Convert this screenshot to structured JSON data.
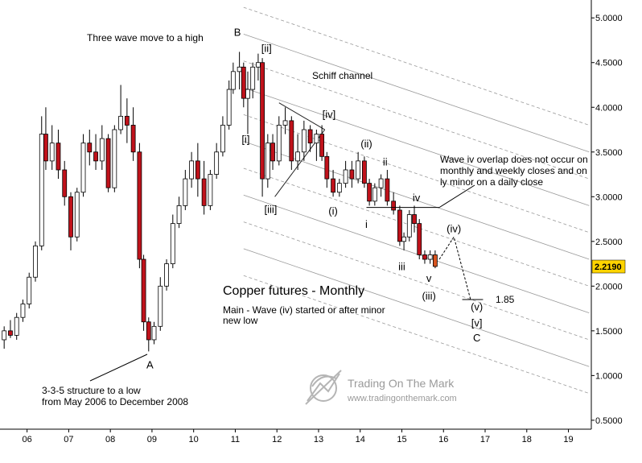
{
  "chart_data": {
    "type": "candlestick",
    "title": "Copper futures - Monthly",
    "subtitle": "Main - Wave (iv) started or after minor new low",
    "x_axis": {
      "ticks": [
        "06",
        "07",
        "08",
        "09",
        "10",
        "11",
        "12",
        "13",
        "14",
        "15",
        "16",
        "17",
        "18",
        "19"
      ],
      "range": [
        2005.35,
        2019.55
      ]
    },
    "y_axis": {
      "scale": "linear",
      "position": "right",
      "range": [
        0.4,
        5.2
      ],
      "ticks": [
        "0.5000",
        "1.0000",
        "1.5000",
        "2.0000",
        "2.5000",
        "3.0000",
        "3.5000",
        "4.0000",
        "4.5000",
        "5.0000"
      ]
    },
    "last_price": {
      "label": "2.2190",
      "value": 2.219
    },
    "target_level": {
      "label": "1.85",
      "value": 1.85
    },
    "wave_labels": [
      {
        "text": "A",
        "x": 2008.95,
        "y": 1.08
      },
      {
        "text": "B",
        "x": 2011.05,
        "y": 4.8
      },
      {
        "text": "C",
        "x": 2016.8,
        "y": 1.38
      },
      {
        "text": "[i]",
        "x": 2011.25,
        "y": 3.6
      },
      {
        "text": "[ii]",
        "x": 2011.75,
        "y": 4.62
      },
      {
        "text": "[iii]",
        "x": 2011.85,
        "y": 2.82
      },
      {
        "text": "[iv]",
        "x": 2013.25,
        "y": 3.88
      },
      {
        "text": "[v]",
        "x": 2016.8,
        "y": 1.55
      },
      {
        "text": "(i)",
        "x": 2013.35,
        "y": 2.8
      },
      {
        "text": "(ii)",
        "x": 2014.15,
        "y": 3.55
      },
      {
        "text": "(iii)",
        "x": 2015.65,
        "y": 1.85
      },
      {
        "text": "(iv)",
        "x": 2016.25,
        "y": 2.6
      },
      {
        "text": "(v)",
        "x": 2016.8,
        "y": 1.73
      },
      {
        "text": "i",
        "x": 2014.15,
        "y": 2.65
      },
      {
        "text": "ii",
        "x": 2014.6,
        "y": 3.35
      },
      {
        "text": "iii",
        "x": 2015.0,
        "y": 2.18
      },
      {
        "text": "iv",
        "x": 2015.35,
        "y": 2.95
      },
      {
        "text": "v",
        "x": 2015.65,
        "y": 2.05
      }
    ],
    "annotations": [
      {
        "text": "Three wave move to a high"
      },
      {
        "text": "Schiff channel"
      },
      {
        "text": "Wave iv overlap does not occur on monthly and weekly closes and only minor on a daily close"
      },
      {
        "text": "3-3-5 structure to a low from May 2006 to December 2008"
      }
    ],
    "projection_path": [
      {
        "x": 2015.9,
        "y": 2.3
      },
      {
        "x": 2016.25,
        "y": 2.55
      },
      {
        "x": 2016.65,
        "y": 1.85
      }
    ],
    "candles": [
      {
        "t": 2005.45,
        "o": 1.4,
        "h": 1.55,
        "l": 1.3,
        "c": 1.5
      },
      {
        "t": 2005.6,
        "o": 1.5,
        "h": 1.62,
        "l": 1.42,
        "c": 1.45
      },
      {
        "t": 2005.75,
        "o": 1.45,
        "h": 1.7,
        "l": 1.4,
        "c": 1.65
      },
      {
        "t": 2005.9,
        "o": 1.65,
        "h": 1.85,
        "l": 1.6,
        "c": 1.8
      },
      {
        "t": 2006.05,
        "o": 1.8,
        "h": 2.15,
        "l": 1.75,
        "c": 2.1
      },
      {
        "t": 2006.2,
        "o": 2.1,
        "h": 2.5,
        "l": 2.05,
        "c": 2.45
      },
      {
        "t": 2006.35,
        "o": 2.45,
        "h": 3.9,
        "l": 2.4,
        "c": 3.7
      },
      {
        "t": 2006.45,
        "o": 3.7,
        "h": 4.0,
        "l": 3.3,
        "c": 3.4
      },
      {
        "t": 2006.6,
        "o": 3.4,
        "h": 3.8,
        "l": 3.3,
        "c": 3.6
      },
      {
        "t": 2006.75,
        "o": 3.6,
        "h": 3.75,
        "l": 3.2,
        "c": 3.3
      },
      {
        "t": 2006.9,
        "o": 3.3,
        "h": 3.4,
        "l": 2.9,
        "c": 3.0
      },
      {
        "t": 2007.05,
        "o": 3.0,
        "h": 3.05,
        "l": 2.4,
        "c": 2.55
      },
      {
        "t": 2007.2,
        "o": 2.55,
        "h": 3.1,
        "l": 2.5,
        "c": 3.05
      },
      {
        "t": 2007.35,
        "o": 3.05,
        "h": 3.7,
        "l": 3.0,
        "c": 3.6
      },
      {
        "t": 2007.5,
        "o": 3.6,
        "h": 3.75,
        "l": 3.35,
        "c": 3.5
      },
      {
        "t": 2007.65,
        "o": 3.5,
        "h": 3.7,
        "l": 3.3,
        "c": 3.4
      },
      {
        "t": 2007.8,
        "o": 3.4,
        "h": 3.8,
        "l": 3.3,
        "c": 3.65
      },
      {
        "t": 2007.95,
        "o": 3.65,
        "h": 3.7,
        "l": 3.05,
        "c": 3.1
      },
      {
        "t": 2008.1,
        "o": 3.1,
        "h": 3.8,
        "l": 3.05,
        "c": 3.75
      },
      {
        "t": 2008.25,
        "o": 3.75,
        "h": 4.25,
        "l": 3.7,
        "c": 3.9
      },
      {
        "t": 2008.4,
        "o": 3.9,
        "h": 4.1,
        "l": 3.6,
        "c": 3.8
      },
      {
        "t": 2008.55,
        "o": 3.8,
        "h": 4.0,
        "l": 3.4,
        "c": 3.5
      },
      {
        "t": 2008.7,
        "o": 3.5,
        "h": 3.6,
        "l": 2.2,
        "c": 2.3
      },
      {
        "t": 2008.8,
        "o": 2.3,
        "h": 2.35,
        "l": 1.5,
        "c": 1.6
      },
      {
        "t": 2008.92,
        "o": 1.6,
        "h": 1.65,
        "l": 1.27,
        "c": 1.4
      },
      {
        "t": 2009.05,
        "o": 1.4,
        "h": 1.6,
        "l": 1.35,
        "c": 1.55
      },
      {
        "t": 2009.2,
        "o": 1.55,
        "h": 2.1,
        "l": 1.5,
        "c": 2.0
      },
      {
        "t": 2009.35,
        "o": 2.0,
        "h": 2.3,
        "l": 1.95,
        "c": 2.25
      },
      {
        "t": 2009.5,
        "o": 2.25,
        "h": 2.8,
        "l": 2.2,
        "c": 2.7
      },
      {
        "t": 2009.65,
        "o": 2.7,
        "h": 3.0,
        "l": 2.65,
        "c": 2.9
      },
      {
        "t": 2009.8,
        "o": 2.9,
        "h": 3.3,
        "l": 2.85,
        "c": 3.2
      },
      {
        "t": 2009.95,
        "o": 3.2,
        "h": 3.5,
        "l": 3.1,
        "c": 3.4
      },
      {
        "t": 2010.1,
        "o": 3.4,
        "h": 3.6,
        "l": 3.0,
        "c": 3.2
      },
      {
        "t": 2010.25,
        "o": 3.2,
        "h": 3.4,
        "l": 2.8,
        "c": 2.9
      },
      {
        "t": 2010.4,
        "o": 2.9,
        "h": 3.3,
        "l": 2.85,
        "c": 3.25
      },
      {
        "t": 2010.55,
        "o": 3.25,
        "h": 3.6,
        "l": 3.2,
        "c": 3.5
      },
      {
        "t": 2010.7,
        "o": 3.5,
        "h": 3.9,
        "l": 3.45,
        "c": 3.8
      },
      {
        "t": 2010.85,
        "o": 3.8,
        "h": 4.3,
        "l": 3.75,
        "c": 4.2
      },
      {
        "t": 2010.95,
        "o": 4.2,
        "h": 4.5,
        "l": 4.15,
        "c": 4.4
      },
      {
        "t": 2011.1,
        "o": 4.4,
        "h": 4.62,
        "l": 4.2,
        "c": 4.45
      },
      {
        "t": 2011.2,
        "o": 4.45,
        "h": 4.5,
        "l": 4.0,
        "c": 4.1
      },
      {
        "t": 2011.3,
        "o": 4.1,
        "h": 4.4,
        "l": 3.7,
        "c": 4.2
      },
      {
        "t": 2011.42,
        "o": 4.2,
        "h": 4.5,
        "l": 4.1,
        "c": 4.45
      },
      {
        "t": 2011.55,
        "o": 4.45,
        "h": 4.6,
        "l": 4.3,
        "c": 4.5
      },
      {
        "t": 2011.65,
        "o": 4.5,
        "h": 4.55,
        "l": 3.0,
        "c": 3.2
      },
      {
        "t": 2011.78,
        "o": 3.2,
        "h": 3.7,
        "l": 3.1,
        "c": 3.6
      },
      {
        "t": 2011.9,
        "o": 3.6,
        "h": 3.7,
        "l": 3.3,
        "c": 3.4
      },
      {
        "t": 2012.05,
        "o": 3.4,
        "h": 3.9,
        "l": 3.35,
        "c": 3.8
      },
      {
        "t": 2012.2,
        "o": 3.8,
        "h": 4.0,
        "l": 3.7,
        "c": 3.85
      },
      {
        "t": 2012.35,
        "o": 3.85,
        "h": 3.9,
        "l": 3.3,
        "c": 3.4
      },
      {
        "t": 2012.5,
        "o": 3.4,
        "h": 3.7,
        "l": 3.3,
        "c": 3.5
      },
      {
        "t": 2012.65,
        "o": 3.5,
        "h": 3.85,
        "l": 3.4,
        "c": 3.75
      },
      {
        "t": 2012.8,
        "o": 3.75,
        "h": 3.8,
        "l": 3.5,
        "c": 3.6
      },
      {
        "t": 2012.95,
        "o": 3.6,
        "h": 3.75,
        "l": 3.4,
        "c": 3.7
      },
      {
        "t": 2013.08,
        "o": 3.7,
        "h": 3.8,
        "l": 3.4,
        "c": 3.45
      },
      {
        "t": 2013.2,
        "o": 3.45,
        "h": 3.5,
        "l": 3.1,
        "c": 3.2
      },
      {
        "t": 2013.35,
        "o": 3.2,
        "h": 3.3,
        "l": 3.0,
        "c": 3.05
      },
      {
        "t": 2013.5,
        "o": 3.05,
        "h": 3.2,
        "l": 3.0,
        "c": 3.15
      },
      {
        "t": 2013.65,
        "o": 3.15,
        "h": 3.4,
        "l": 3.1,
        "c": 3.3
      },
      {
        "t": 2013.8,
        "o": 3.3,
        "h": 3.4,
        "l": 3.1,
        "c": 3.2
      },
      {
        "t": 2013.95,
        "o": 3.2,
        "h": 3.5,
        "l": 3.15,
        "c": 3.4
      },
      {
        "t": 2014.1,
        "o": 3.4,
        "h": 3.45,
        "l": 3.1,
        "c": 3.15
      },
      {
        "t": 2014.22,
        "o": 3.15,
        "h": 3.2,
        "l": 2.9,
        "c": 2.95
      },
      {
        "t": 2014.35,
        "o": 2.95,
        "h": 3.15,
        "l": 2.9,
        "c": 3.1
      },
      {
        "t": 2014.5,
        "o": 3.1,
        "h": 3.25,
        "l": 3.0,
        "c": 3.2
      },
      {
        "t": 2014.65,
        "o": 3.2,
        "h": 3.3,
        "l": 2.9,
        "c": 2.95
      },
      {
        "t": 2014.8,
        "o": 2.95,
        "h": 3.05,
        "l": 2.8,
        "c": 2.85
      },
      {
        "t": 2014.95,
        "o": 2.85,
        "h": 2.9,
        "l": 2.45,
        "c": 2.5
      },
      {
        "t": 2015.05,
        "o": 2.5,
        "h": 2.6,
        "l": 2.4,
        "c": 2.55
      },
      {
        "t": 2015.18,
        "o": 2.55,
        "h": 2.85,
        "l": 2.5,
        "c": 2.8
      },
      {
        "t": 2015.3,
        "o": 2.8,
        "h": 2.9,
        "l": 2.6,
        "c": 2.7
      },
      {
        "t": 2015.42,
        "o": 2.7,
        "h": 2.75,
        "l": 2.3,
        "c": 2.35
      },
      {
        "t": 2015.55,
        "o": 2.35,
        "h": 2.4,
        "l": 2.25,
        "c": 2.3
      },
      {
        "t": 2015.68,
        "o": 2.3,
        "h": 2.4,
        "l": 2.25,
        "c": 2.35
      },
      {
        "t": 2015.8,
        "o": 2.35,
        "h": 2.4,
        "l": 2.2,
        "c": 2.22
      }
    ],
    "colors": {
      "up": "#ffffff",
      "down": "#c0121b",
      "last": "#d8541f",
      "price_tag": "#ffd400",
      "text": "#111111",
      "channel": "#999999"
    }
  },
  "watermark": {
    "brand": "Trading On The Mark",
    "url": "www.tradingonthemark.com"
  }
}
